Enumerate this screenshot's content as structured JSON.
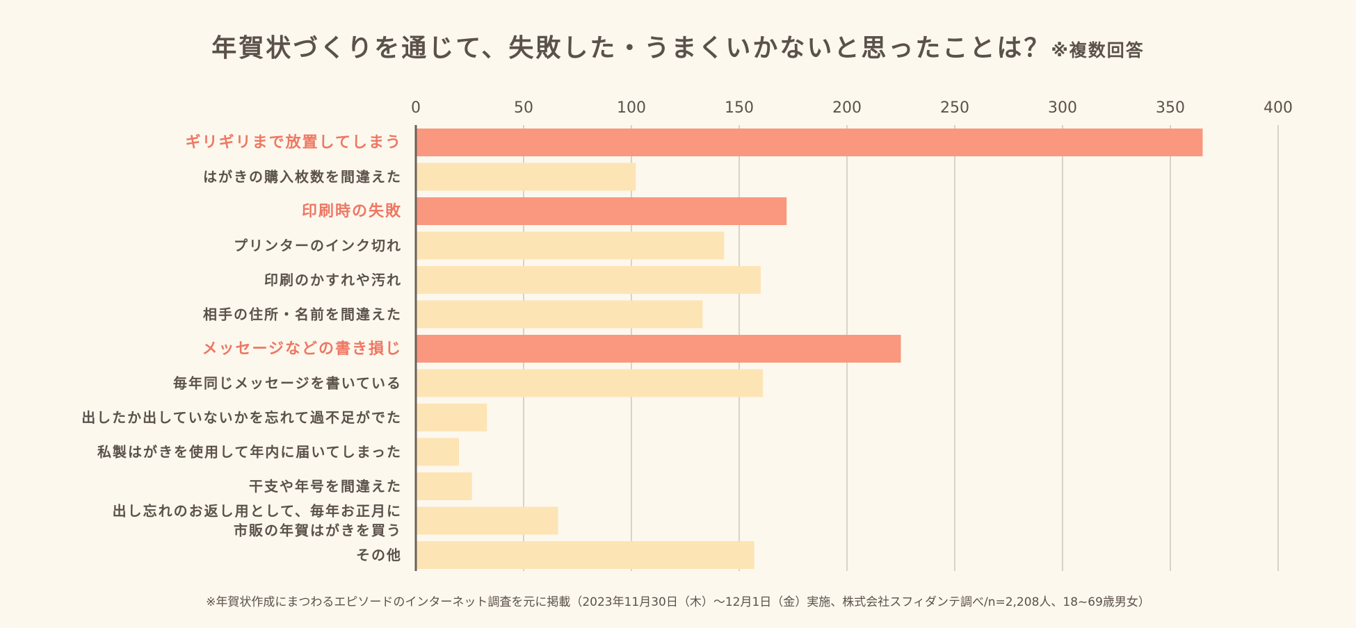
{
  "chart_data": {
    "type": "bar",
    "orientation": "horizontal",
    "title": "年賀状づくりを通じて、失敗した・うまくいかないと思ったことは？",
    "title_note": "※複数回答",
    "footnote": "※年賀状作成にまつわるエピソードのインターネット調査を元に掲載（2023年11月30日（木）～12月1日（金）実施、株式会社スフィダンテ調べ/n=2,208人、18~69歳男女）",
    "xlim": [
      0,
      400
    ],
    "ticks": [
      "0",
      "50",
      "100",
      "150",
      "200",
      "250",
      "300",
      "350",
      "400"
    ],
    "grid": true,
    "categories": [
      "ギリギリまで放置してしまう",
      "はがきの購入枚数を間違えた",
      "印刷時の失敗",
      "プリンターのインク切れ",
      "印刷のかすれや汚れ",
      "相手の住所・名前を間違えた",
      "メッセージなどの書き損じ",
      "毎年同じメッセージを書いている",
      "出したか出していないかを忘れて過不足がでた",
      "私製はがきを使用して年内に届いてしまった",
      "干支や年号を間違えた",
      "出し忘れのお返し用として、毎年お正月に 市販の年賀はがきを買う",
      "その他"
    ],
    "category_lines": [
      [
        "ギリギリまで放置してしまう"
      ],
      [
        "はがきの購入枚数を間違えた"
      ],
      [
        "印刷時の失敗"
      ],
      [
        "プリンターのインク切れ"
      ],
      [
        "印刷のかすれや汚れ"
      ],
      [
        "相手の住所・名前を間違えた"
      ],
      [
        "メッセージなどの書き損じ"
      ],
      [
        "毎年同じメッセージを書いている"
      ],
      [
        "出したか出していないかを忘れて過不足がでた"
      ],
      [
        "私製はがきを使用して年内に届いてしまった"
      ],
      [
        "干支や年号を間違えた"
      ],
      [
        "出し忘れのお返し用として、毎年お正月に",
        "市販の年賀はがきを買う"
      ],
      [
        "その他"
      ]
    ],
    "values": [
      365,
      102,
      172,
      143,
      160,
      133,
      225,
      161,
      33,
      20,
      26,
      66,
      157
    ],
    "highlighted": [
      true,
      false,
      true,
      false,
      false,
      false,
      true,
      false,
      false,
      false,
      false,
      false,
      false
    ],
    "colors": {
      "highlight": "#f9977f",
      "normal": "#fde4b5",
      "highlight_label": "#ee7763",
      "label": "#5b514b",
      "grid": "#d9d2c8",
      "axis": "#6a605a"
    }
  }
}
